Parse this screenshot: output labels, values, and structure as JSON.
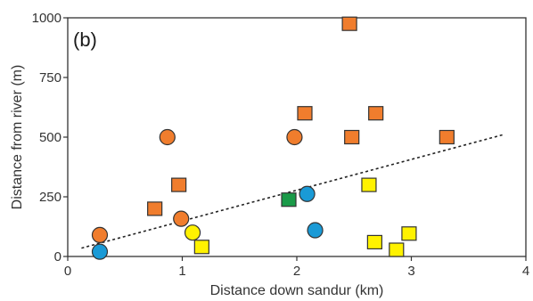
{
  "chart_data": {
    "type": "scatter",
    "panel_label": "(b)",
    "title": "",
    "xlabel": "Distance down sandur (km)",
    "ylabel": "Distance from river (m)",
    "xlim": [
      0,
      4
    ],
    "ylim": [
      0,
      1000
    ],
    "xticks": [
      "0",
      "1",
      "2",
      "3",
      "4"
    ],
    "yticks": [
      "0",
      "250",
      "500",
      "750",
      "1000"
    ],
    "grid": false,
    "legend": "none",
    "colors": {
      "orange": "#f07d2d",
      "blue": "#1a9ad6",
      "yellow": "#fff200",
      "green": "#1a9a48",
      "outline": "#333333",
      "trendline": "#222222"
    },
    "series": [
      {
        "color": "orange",
        "marker": "circle",
        "points": [
          {
            "x": 0.28,
            "y": 90
          },
          {
            "x": 0.87,
            "y": 500
          },
          {
            "x": 0.99,
            "y": 158
          },
          {
            "x": 1.98,
            "y": 500
          }
        ]
      },
      {
        "color": "orange",
        "marker": "square",
        "points": [
          {
            "x": 0.76,
            "y": 200
          },
          {
            "x": 0.97,
            "y": 300
          },
          {
            "x": 2.07,
            "y": 600
          },
          {
            "x": 2.46,
            "y": 975
          },
          {
            "x": 2.48,
            "y": 500
          },
          {
            "x": 2.69,
            "y": 600
          },
          {
            "x": 3.31,
            "y": 500
          }
        ]
      },
      {
        "color": "blue",
        "marker": "circle",
        "points": [
          {
            "x": 0.28,
            "y": 20
          },
          {
            "x": 2.09,
            "y": 262
          },
          {
            "x": 2.16,
            "y": 110
          }
        ]
      },
      {
        "color": "yellow",
        "marker": "circle",
        "points": [
          {
            "x": 1.09,
            "y": 100
          }
        ]
      },
      {
        "color": "yellow",
        "marker": "square",
        "points": [
          {
            "x": 1.17,
            "y": 40
          },
          {
            "x": 2.63,
            "y": 300
          },
          {
            "x": 2.68,
            "y": 60
          },
          {
            "x": 2.87,
            "y": 28
          },
          {
            "x": 2.98,
            "y": 96
          }
        ]
      },
      {
        "color": "green",
        "marker": "square",
        "points": [
          {
            "x": 1.93,
            "y": 238
          }
        ]
      }
    ],
    "trendline": {
      "style": "dotted",
      "x": [
        0.12,
        3.8
      ],
      "y": [
        35,
        510
      ]
    }
  }
}
